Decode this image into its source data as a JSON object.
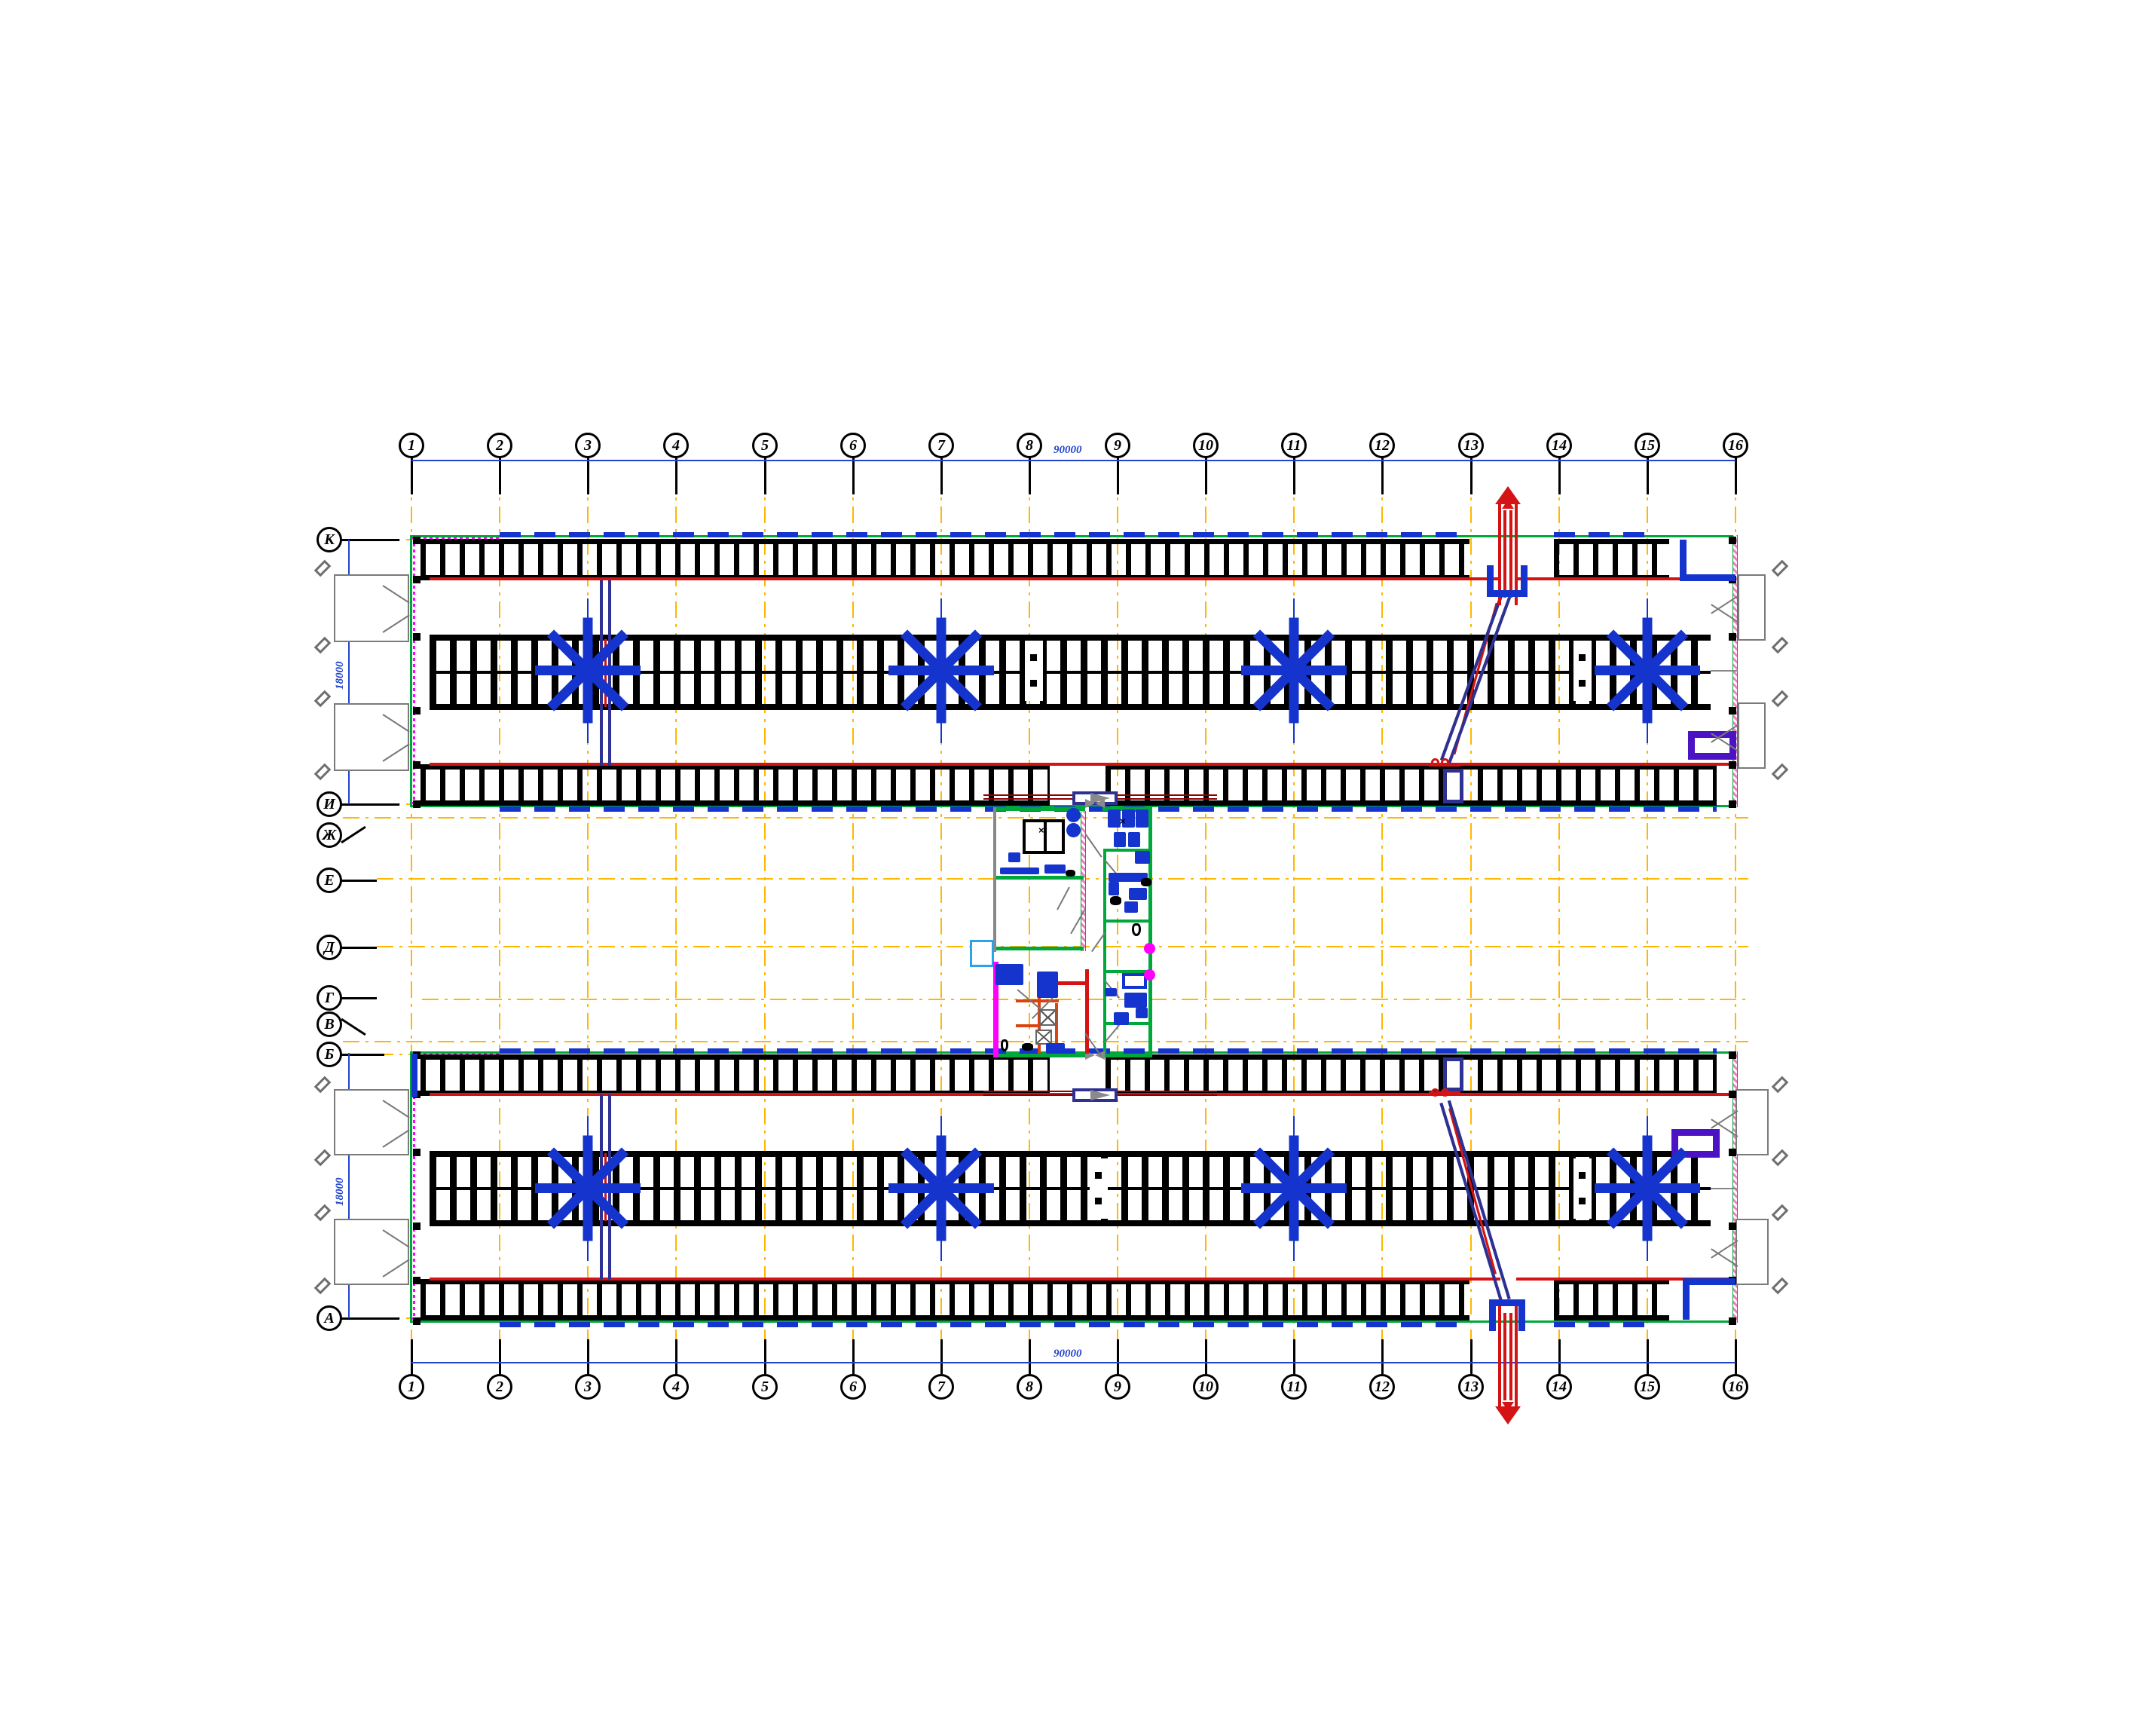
{
  "document": {
    "type": "architectural floor plan",
    "description": "Two long poultry-house buildings with cage rows and ventilation fans, connected by a central service block"
  },
  "axes": {
    "numbered": [
      "1",
      "2",
      "3",
      "4",
      "5",
      "6",
      "7",
      "8",
      "9",
      "10",
      "11",
      "12",
      "13",
      "14",
      "15",
      "16"
    ],
    "lettered": [
      "К",
      "И",
      "Ж",
      "Е",
      "Д",
      "Г",
      "В",
      "Б",
      "А"
    ]
  },
  "dimensions": {
    "overall_length_top": "90000",
    "overall_length_bottom": "90000",
    "building_width_top": "18000",
    "building_width_bottom": "18000"
  },
  "symbols": {
    "ventilation_fan_count": 8,
    "exhaust_duct_count": 2,
    "inclined_conveyor_count": 2
  },
  "colors": {
    "blue": "#1434cd",
    "navy": "#2e3191",
    "red": "#d41414",
    "darkred": "#8b0000",
    "green": "#00a83c",
    "magenta": "#ff00ff",
    "pink": "#f080c0",
    "orange": "#ffb800",
    "purple": "#4b13c4",
    "cyan": "#2aa3e8",
    "dimblue": "#2244cc",
    "orangered": "#d94410"
  }
}
